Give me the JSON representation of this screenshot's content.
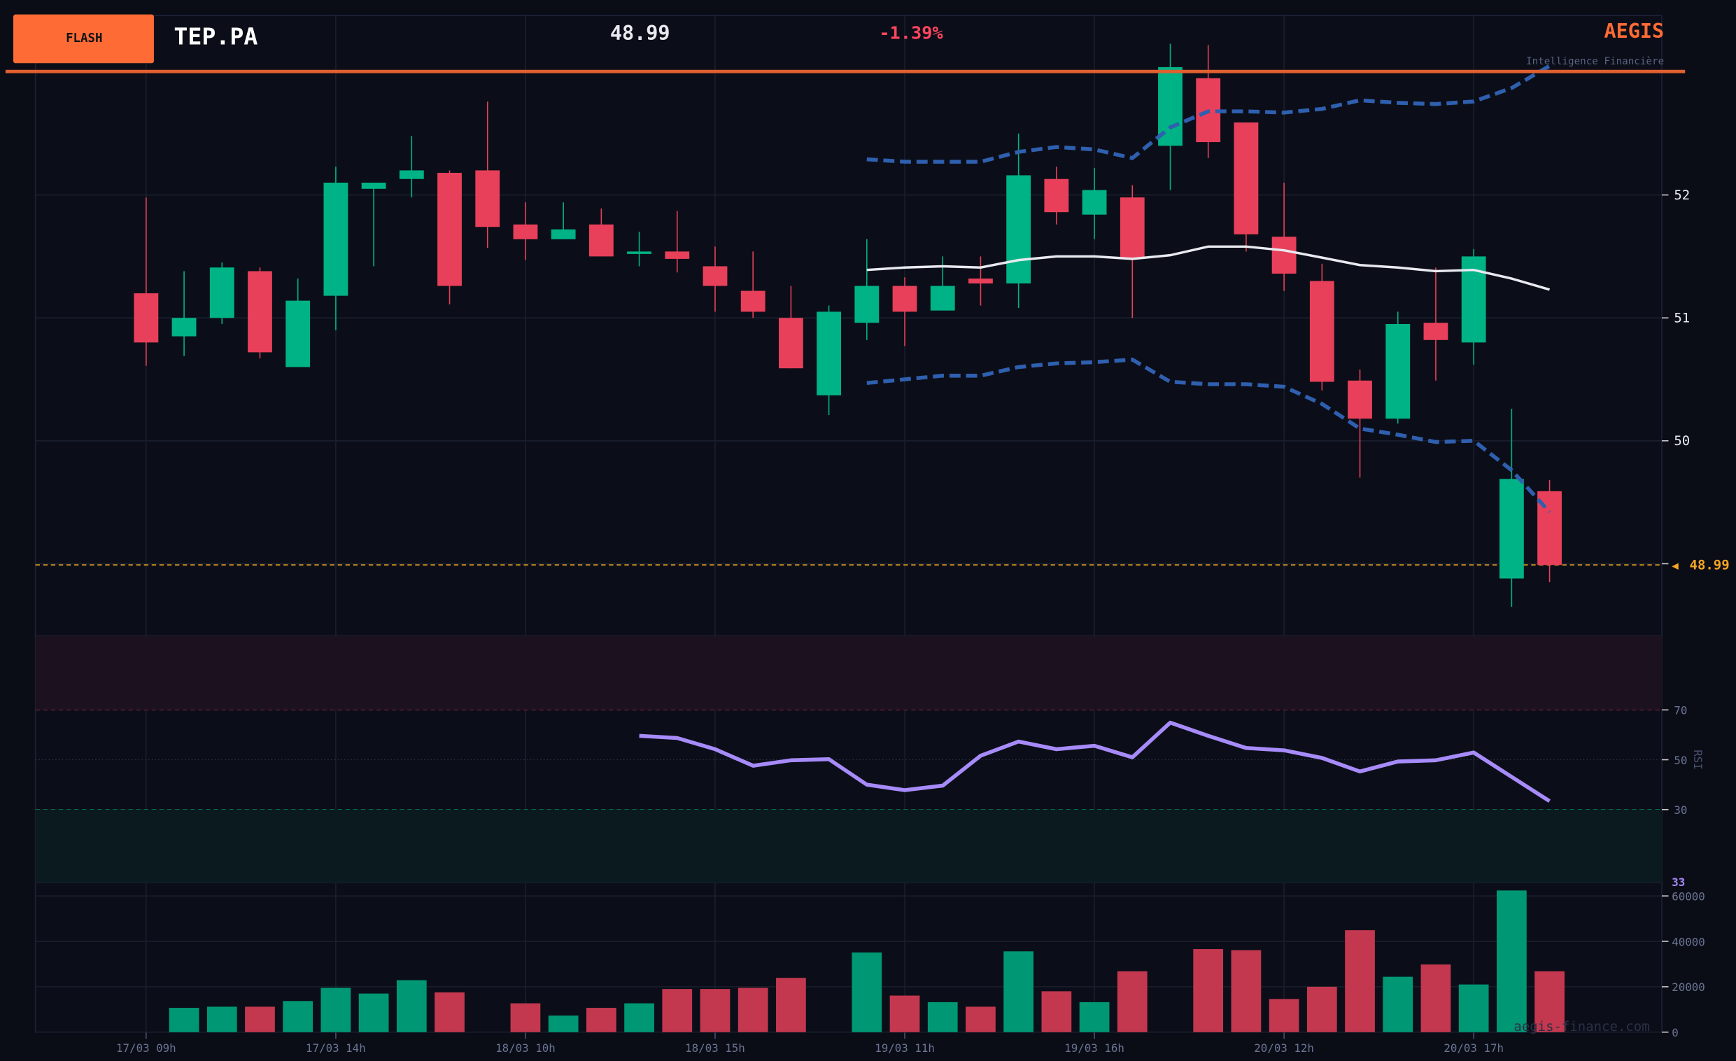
{
  "header": {
    "badge": "FLASH",
    "ticker": "TEP.PA",
    "price": "48.99",
    "change": "-1.39%",
    "brand": "AEGIS",
    "brand_tagline": "Intelligence Financière",
    "watermark": "aegis-finance.com"
  },
  "colors": {
    "up": "#00b386",
    "down": "#e8405a",
    "accent": "#ff6b35",
    "bb_mid": "#e8eaf0",
    "bb_band": "#2f5faf",
    "rsi": "#a78bfa",
    "last_price": "#f5a623"
  },
  "chart_data": [
    {
      "type": "candlestick",
      "title": "TEP.PA",
      "x_ticks": [
        "17/03 09h",
        "17/03 14h",
        "18/03 10h",
        "18/03 15h",
        "19/03 11h",
        "19/03 16h",
        "20/03 12h",
        "20/03 17h"
      ],
      "x_tick_every": 5,
      "y_ticks": [
        "52",
        "51",
        "50",
        "49"
      ],
      "ylim": [
        48.39,
        53.25
      ],
      "last_price_label": "48.99",
      "last_price": 48.99,
      "ohlc": [
        [
          51.2,
          51.98,
          50.61,
          50.8
        ],
        [
          50.85,
          51.38,
          50.69,
          51.0
        ],
        [
          51.0,
          51.45,
          50.95,
          51.41
        ],
        [
          51.38,
          51.41,
          50.67,
          50.72
        ],
        [
          50.6,
          51.32,
          50.6,
          51.14
        ],
        [
          51.18,
          52.23,
          50.9,
          52.1
        ],
        [
          52.05,
          52.1,
          51.42,
          52.1
        ],
        [
          52.13,
          52.48,
          51.98,
          52.2
        ],
        [
          52.18,
          52.2,
          51.11,
          51.26
        ],
        [
          52.2,
          52.76,
          51.57,
          51.74
        ],
        [
          51.76,
          51.94,
          51.47,
          51.64
        ],
        [
          51.64,
          51.94,
          51.64,
          51.72
        ],
        [
          51.76,
          51.89,
          51.5,
          51.5
        ],
        [
          51.52,
          51.7,
          51.42,
          51.54
        ],
        [
          51.54,
          51.87,
          51.37,
          51.48
        ],
        [
          51.42,
          51.58,
          51.05,
          51.26
        ],
        [
          51.22,
          51.54,
          51.0,
          51.05
        ],
        [
          51.0,
          51.26,
          50.59,
          50.59
        ],
        [
          50.37,
          51.1,
          50.21,
          51.05
        ],
        [
          50.96,
          51.64,
          50.82,
          51.26
        ],
        [
          51.26,
          51.33,
          50.77,
          51.05
        ],
        [
          51.06,
          51.5,
          51.06,
          51.26
        ],
        [
          51.32,
          51.5,
          51.1,
          51.28
        ],
        [
          51.28,
          52.5,
          51.08,
          52.16
        ],
        [
          52.13,
          52.23,
          51.76,
          51.86
        ],
        [
          51.84,
          52.22,
          51.64,
          52.04
        ],
        [
          51.98,
          52.08,
          51.0,
          51.48
        ],
        [
          52.4,
          53.23,
          52.04,
          53.04
        ],
        [
          52.95,
          53.22,
          52.3,
          52.43
        ],
        [
          52.59,
          52.59,
          51.54,
          51.68
        ],
        [
          51.66,
          52.1,
          51.22,
          51.36
        ],
        [
          51.3,
          51.44,
          50.41,
          50.48
        ],
        [
          50.49,
          50.58,
          49.7,
          50.18
        ],
        [
          50.18,
          51.05,
          50.14,
          50.95
        ],
        [
          50.96,
          51.41,
          50.49,
          50.82
        ],
        [
          50.8,
          51.56,
          50.62,
          51.5
        ],
        [
          48.88,
          50.26,
          48.65,
          49.69
        ],
        [
          49.59,
          49.68,
          48.85,
          48.99
        ]
      ],
      "bollinger_start": 19,
      "bb_mid": [
        51.39,
        51.41,
        51.42,
        51.41,
        51.47,
        51.5,
        51.5,
        51.48,
        51.51,
        51.58,
        51.58,
        51.55,
        51.49,
        51.43,
        51.41,
        51.38,
        51.39,
        51.32,
        51.23
      ],
      "bb_upper": [
        52.29,
        52.27,
        52.27,
        52.27,
        52.35,
        52.39,
        52.37,
        52.3,
        52.55,
        52.68,
        52.68,
        52.67,
        52.7,
        52.77,
        52.75,
        52.74,
        52.76,
        52.87,
        53.05
      ],
      "bb_lower": [
        50.47,
        50.5,
        50.53,
        50.53,
        50.6,
        50.63,
        50.64,
        50.66,
        50.48,
        50.46,
        50.46,
        50.44,
        50.3,
        50.1,
        50.05,
        49.99,
        50.0,
        49.76,
        49.42
      ]
    },
    {
      "type": "line",
      "title": "RSI",
      "ylabel": "RSI",
      "ylim": [
        0,
        100
      ],
      "y_ticks": [
        "70",
        "50",
        "30"
      ],
      "overbought": 70,
      "oversold": 30,
      "start": 13,
      "values": [
        59.6,
        58.7,
        54.2,
        47.6,
        49.8,
        50.2,
        40.0,
        37.8,
        39.6,
        51.6,
        57.3,
        54.2,
        55.6,
        51.0,
        64.9,
        59.6,
        54.7,
        53.8,
        50.7,
        45.3,
        49.3,
        49.8,
        52.9,
        43.1,
        33.4
      ],
      "last_label": "33"
    },
    {
      "type": "bar",
      "title": "Volume",
      "ylim": [
        0,
        60000
      ],
      "y_ticks": [
        "60000",
        "40000",
        "20000",
        "0"
      ],
      "values": [
        0,
        10700,
        11200,
        11200,
        13700,
        19500,
        17000,
        22900,
        17500,
        0,
        12700,
        7300,
        10700,
        12700,
        19000,
        19000,
        19500,
        23900,
        0,
        35100,
        16100,
        13200,
        11200,
        35600,
        18000,
        13200,
        26800,
        0,
        36600,
        36100,
        14600,
        20000,
        44900,
        24400,
        29800,
        21000,
        62400,
        26800
      ],
      "direction": [
        "u",
        "u",
        "u",
        "d",
        "u",
        "u",
        "u",
        "u",
        "d",
        "u",
        "d",
        "u",
        "d",
        "u",
        "d",
        "d",
        "d",
        "d",
        "u",
        "u",
        "d",
        "u",
        "d",
        "u",
        "d",
        "u",
        "d",
        "u",
        "d",
        "d",
        "d",
        "d",
        "d",
        "u",
        "d",
        "u",
        "u",
        "d"
      ]
    }
  ]
}
